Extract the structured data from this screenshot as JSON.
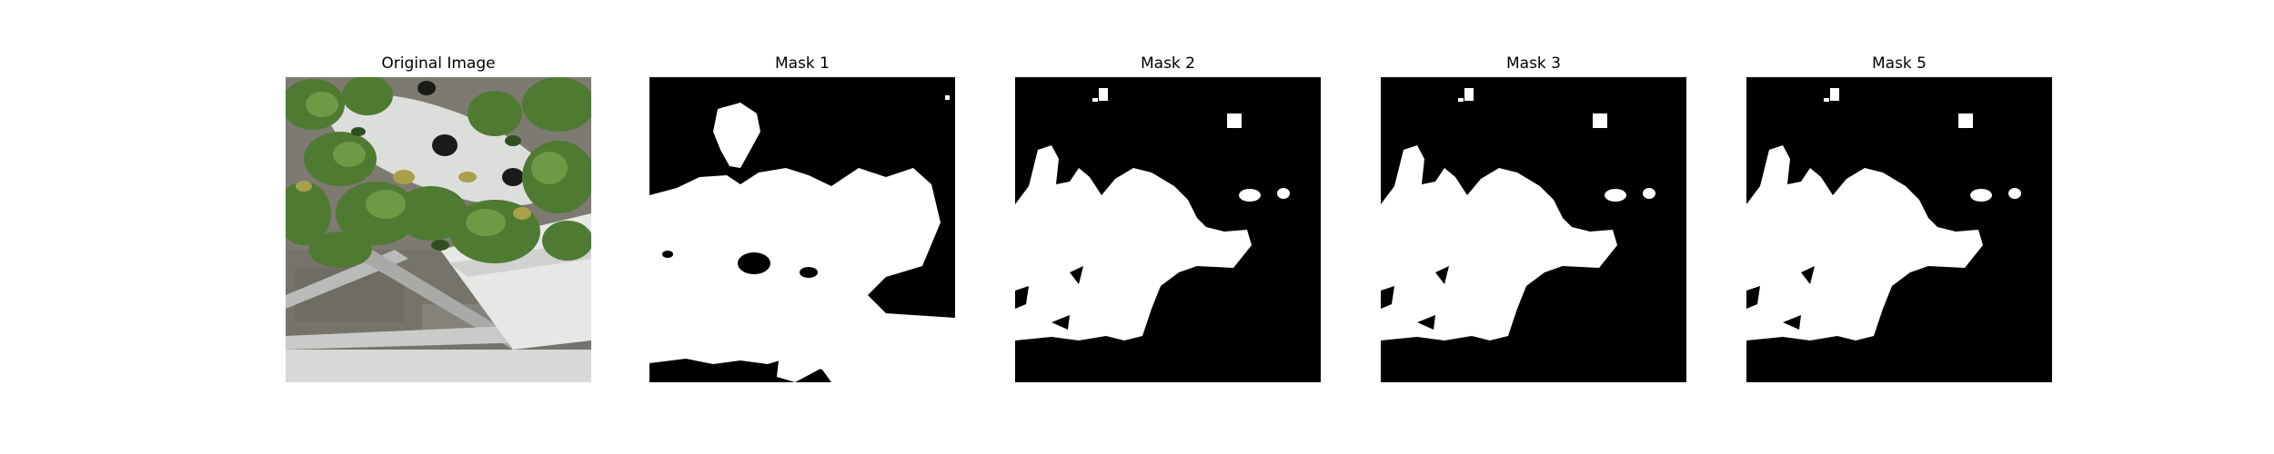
{
  "figure": {
    "panels": [
      {
        "title": "Original Image",
        "type": "photo"
      },
      {
        "title": "Mask 1",
        "type": "mask"
      },
      {
        "title": "Mask 2",
        "type": "mask"
      },
      {
        "title": "Mask 3",
        "type": "mask"
      },
      {
        "title": "Mask 5",
        "type": "mask"
      }
    ]
  },
  "colors": {
    "background": "#ffffff",
    "mask_background": "#000000",
    "mask_foreground": "#ffffff",
    "leaf_green": "#4f7a32",
    "pipe_white": "#e6e8e6",
    "ground_grey": "#7d7a72"
  }
}
